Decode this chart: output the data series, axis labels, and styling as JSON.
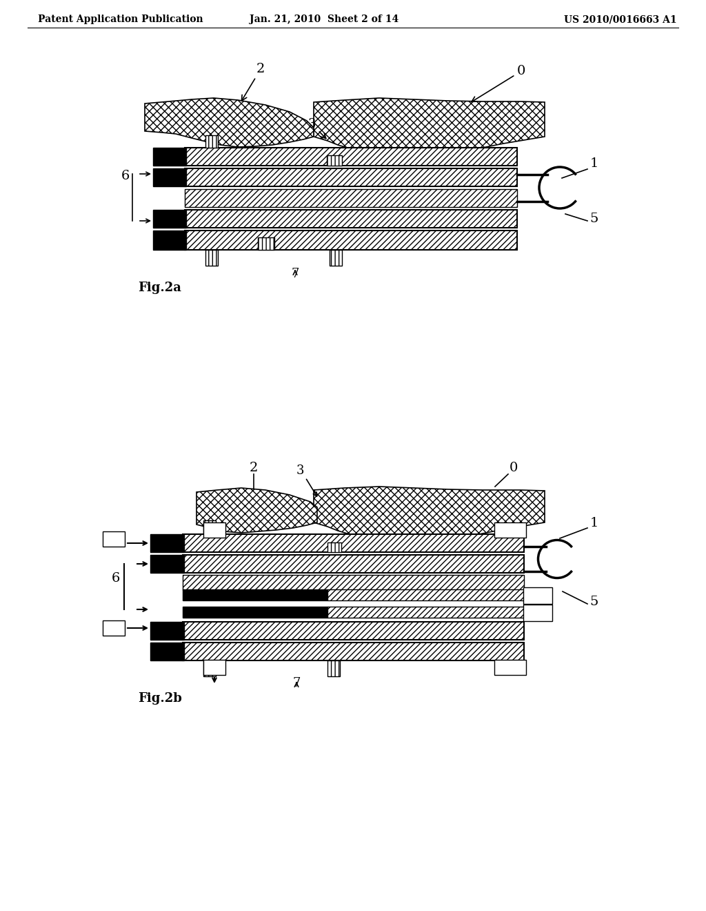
{
  "title_left": "Patent Application Publication",
  "title_center": "Jan. 21, 2010  Sheet 2 of 14",
  "title_right": "US 2010/0016663 A1",
  "fig2a_label": "Fig.2a",
  "fig2b_label": "Fig.2b",
  "bg_color": "#ffffff"
}
